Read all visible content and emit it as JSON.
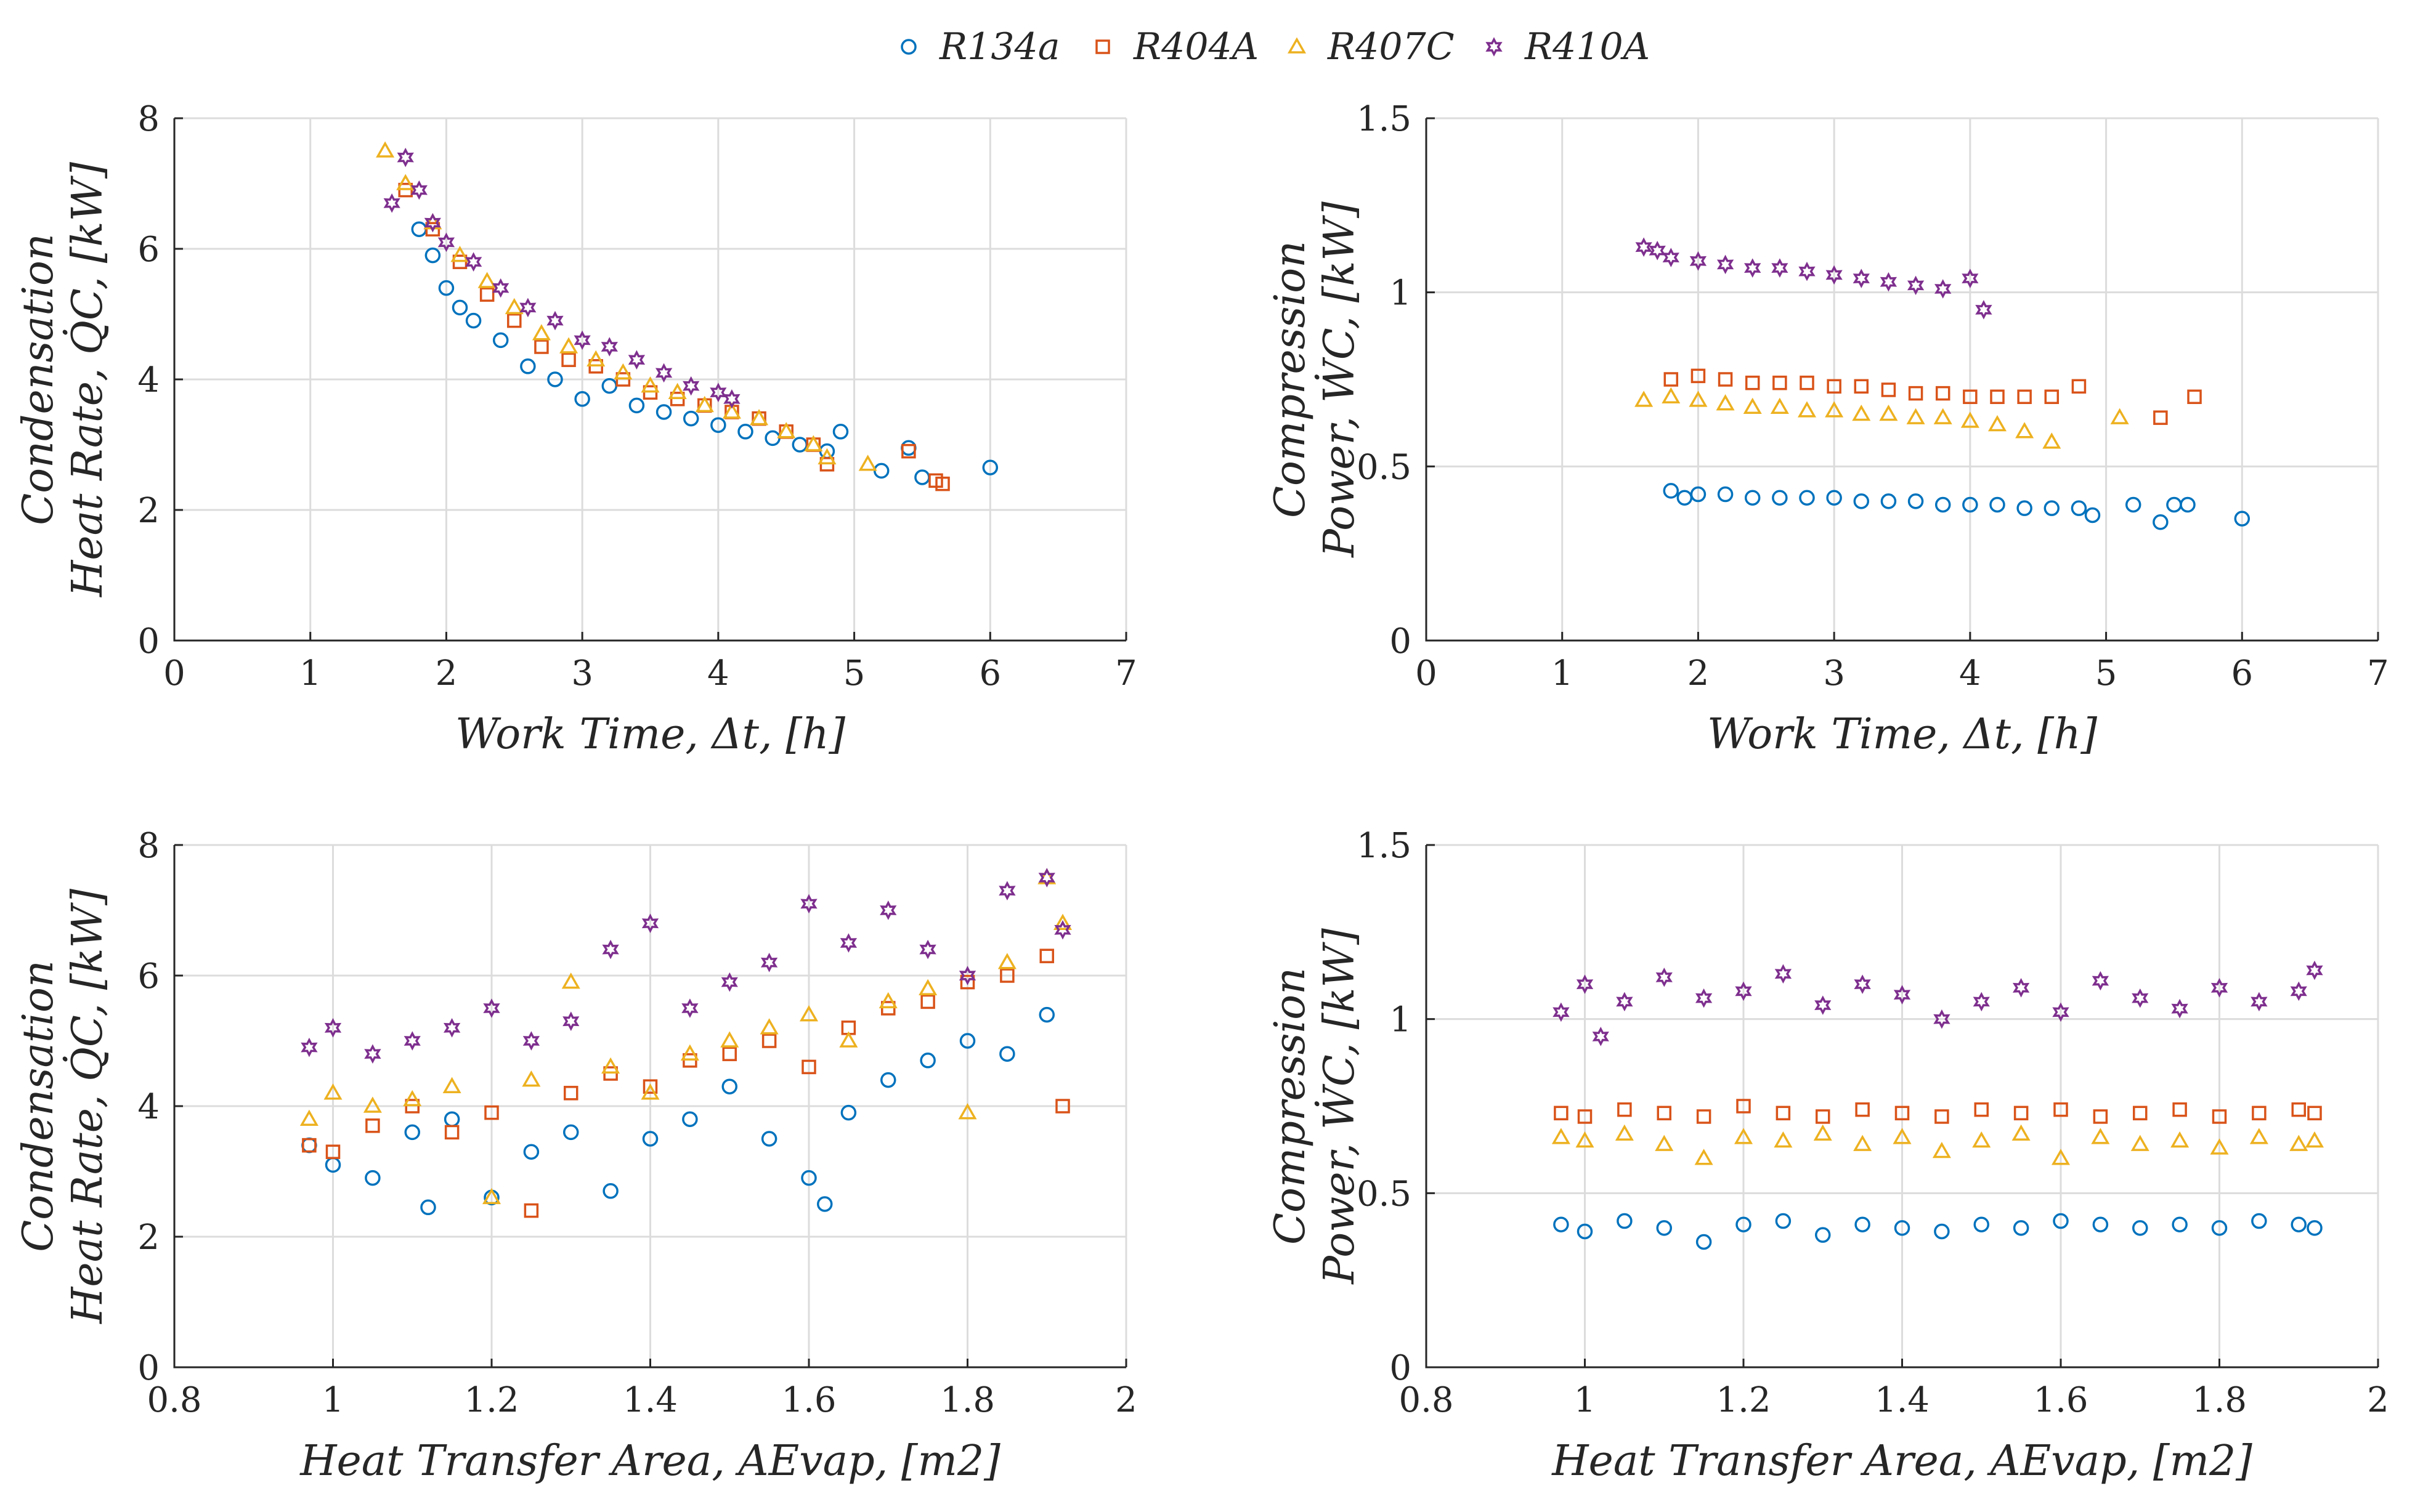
{
  "legend": {
    "entries": [
      {
        "name": "R134a",
        "marker": "circle",
        "color": "#0072BD"
      },
      {
        "name": "R404A",
        "marker": "square",
        "color": "#D95319"
      },
      {
        "name": "R407C",
        "marker": "triangle",
        "color": "#EDB120"
      },
      {
        "name": "R410A",
        "marker": "hexagram",
        "color": "#7E2F8E"
      }
    ]
  },
  "chart_data": [
    {
      "type": "scatter",
      "id": "qc_vs_time",
      "title": "",
      "xlabel": "Work Time, Δt, [h]",
      "ylabel_line1": "Condensation",
      "ylabel_line2": "Heat Rate, Q̇C, [kW]",
      "xlim": [
        0,
        7
      ],
      "ylim": [
        0,
        8
      ],
      "xticks": [
        "0",
        "1",
        "2",
        "3",
        "4",
        "5",
        "6",
        "7"
      ],
      "yticks": [
        "0",
        "2",
        "4",
        "6",
        "8"
      ],
      "grid": true,
      "series": [
        {
          "name": "R134a",
          "x": [
            1.8,
            1.9,
            2.0,
            2.1,
            2.2,
            2.4,
            2.6,
            2.8,
            3.0,
            3.2,
            3.4,
            3.6,
            3.8,
            4.0,
            4.2,
            4.4,
            4.6,
            4.8,
            4.9,
            5.2,
            5.4,
            5.5,
            6.0
          ],
          "y": [
            6.3,
            5.9,
            5.4,
            5.1,
            4.9,
            4.6,
            4.2,
            4.0,
            3.7,
            3.9,
            3.6,
            3.5,
            3.4,
            3.3,
            3.2,
            3.1,
            3.0,
            2.9,
            3.2,
            2.6,
            2.95,
            2.5,
            2.65
          ]
        },
        {
          "name": "R404A",
          "x": [
            1.7,
            1.9,
            2.1,
            2.3,
            2.5,
            2.7,
            2.9,
            3.1,
            3.3,
            3.5,
            3.7,
            3.9,
            4.1,
            4.3,
            4.5,
            4.7,
            4.8,
            5.4,
            5.6,
            5.65
          ],
          "y": [
            6.9,
            6.3,
            5.8,
            5.3,
            4.9,
            4.5,
            4.3,
            4.2,
            4.0,
            3.8,
            3.7,
            3.6,
            3.5,
            3.4,
            3.2,
            3.0,
            2.7,
            2.9,
            2.45,
            2.4
          ]
        },
        {
          "name": "R407C",
          "x": [
            1.55,
            1.7,
            1.9,
            2.1,
            2.3,
            2.5,
            2.7,
            2.9,
            3.1,
            3.3,
            3.5,
            3.7,
            3.9,
            4.1,
            4.3,
            4.5,
            4.7,
            4.8,
            5.1
          ],
          "y": [
            7.5,
            7.0,
            6.4,
            5.9,
            5.5,
            5.1,
            4.7,
            4.5,
            4.3,
            4.1,
            3.9,
            3.8,
            3.6,
            3.5,
            3.4,
            3.2,
            3.0,
            2.8,
            2.7
          ]
        },
        {
          "name": "R410A",
          "x": [
            1.6,
            1.7,
            1.8,
            1.9,
            2.0,
            2.2,
            2.4,
            2.6,
            2.8,
            3.0,
            3.2,
            3.4,
            3.6,
            3.8,
            4.0,
            4.1
          ],
          "y": [
            6.7,
            7.4,
            6.9,
            6.4,
            6.1,
            5.8,
            5.4,
            5.1,
            4.9,
            4.6,
            4.5,
            4.3,
            4.1,
            3.9,
            3.8,
            3.7
          ]
        }
      ]
    },
    {
      "type": "scatter",
      "id": "wc_vs_time",
      "title": "",
      "xlabel": "Work Time, Δt, [h]",
      "ylabel_line1": "Compression",
      "ylabel_line2": "Power, ẆC, [kW]",
      "xlim": [
        0,
        7
      ],
      "ylim": [
        0,
        1.5
      ],
      "xticks": [
        "0",
        "1",
        "2",
        "3",
        "4",
        "5",
        "6",
        "7"
      ],
      "yticks": [
        "0",
        "0.5",
        "1",
        "1.5"
      ],
      "grid": true,
      "series": [
        {
          "name": "R134a",
          "x": [
            1.8,
            1.9,
            2.0,
            2.2,
            2.4,
            2.6,
            2.8,
            3.0,
            3.2,
            3.4,
            3.6,
            3.8,
            4.0,
            4.2,
            4.4,
            4.6,
            4.8,
            4.9,
            5.2,
            5.4,
            5.5,
            5.6,
            6.0
          ],
          "y": [
            0.43,
            0.41,
            0.42,
            0.42,
            0.41,
            0.41,
            0.41,
            0.41,
            0.4,
            0.4,
            0.4,
            0.39,
            0.39,
            0.39,
            0.38,
            0.38,
            0.38,
            0.36,
            0.39,
            0.34,
            0.39,
            0.39,
            0.35
          ]
        },
        {
          "name": "R404A",
          "x": [
            1.8,
            2.0,
            2.2,
            2.4,
            2.6,
            2.8,
            3.0,
            3.2,
            3.4,
            3.6,
            3.8,
            4.0,
            4.2,
            4.4,
            4.6,
            4.8,
            5.4,
            5.65
          ],
          "y": [
            0.75,
            0.76,
            0.75,
            0.74,
            0.74,
            0.74,
            0.73,
            0.73,
            0.72,
            0.71,
            0.71,
            0.7,
            0.7,
            0.7,
            0.7,
            0.73,
            0.64,
            0.7
          ]
        },
        {
          "name": "R407C",
          "x": [
            1.6,
            1.8,
            2.0,
            2.2,
            2.4,
            2.6,
            2.8,
            3.0,
            3.2,
            3.4,
            3.6,
            3.8,
            4.0,
            4.2,
            4.4,
            4.6,
            5.1
          ],
          "y": [
            0.69,
            0.7,
            0.69,
            0.68,
            0.67,
            0.67,
            0.66,
            0.66,
            0.65,
            0.65,
            0.64,
            0.64,
            0.63,
            0.62,
            0.6,
            0.57,
            0.64
          ]
        },
        {
          "name": "R410A",
          "x": [
            1.6,
            1.7,
            1.8,
            2.0,
            2.2,
            2.4,
            2.6,
            2.8,
            3.0,
            3.2,
            3.4,
            3.6,
            3.8,
            4.0,
            4.1
          ],
          "y": [
            1.13,
            1.12,
            1.1,
            1.09,
            1.08,
            1.07,
            1.07,
            1.06,
            1.05,
            1.04,
            1.03,
            1.02,
            1.01,
            1.04,
            0.95
          ]
        }
      ]
    },
    {
      "type": "scatter",
      "id": "qc_vs_area",
      "title": "",
      "xlabel": "Heat Transfer Area, AEvap, [m2]",
      "ylabel_line1": "Condensation",
      "ylabel_line2": "Heat Rate, Q̇C, [kW]",
      "xlim": [
        0.8,
        2
      ],
      "ylim": [
        0,
        8
      ],
      "xticks": [
        "0.8",
        "1",
        "1.2",
        "1.4",
        "1.6",
        "1.8",
        "2"
      ],
      "yticks": [
        "0",
        "2",
        "4",
        "6",
        "8"
      ],
      "grid": true,
      "series": [
        {
          "name": "R134a",
          "x": [
            0.97,
            1.0,
            1.05,
            1.1,
            1.12,
            1.15,
            1.2,
            1.25,
            1.3,
            1.35,
            1.4,
            1.45,
            1.5,
            1.55,
            1.6,
            1.62,
            1.65,
            1.7,
            1.75,
            1.8,
            1.85,
            1.9
          ],
          "y": [
            3.4,
            3.1,
            2.9,
            3.6,
            2.45,
            3.8,
            2.6,
            3.3,
            3.6,
            2.7,
            3.5,
            3.8,
            4.3,
            3.5,
            2.9,
            2.5,
            3.9,
            4.4,
            4.7,
            5.0,
            4.8,
            5.4
          ]
        },
        {
          "name": "R404A",
          "x": [
            0.97,
            1.0,
            1.05,
            1.1,
            1.15,
            1.2,
            1.25,
            1.3,
            1.35,
            1.4,
            1.45,
            1.5,
            1.55,
            1.6,
            1.65,
            1.7,
            1.75,
            1.8,
            1.85,
            1.9,
            1.92
          ],
          "y": [
            3.4,
            3.3,
            3.7,
            4.0,
            3.6,
            3.9,
            2.4,
            4.2,
            4.5,
            4.3,
            4.7,
            4.8,
            5.0,
            4.6,
            5.2,
            5.5,
            5.6,
            5.9,
            6.0,
            6.3,
            4.0
          ]
        },
        {
          "name": "R407C",
          "x": [
            0.97,
            1.0,
            1.05,
            1.1,
            1.15,
            1.2,
            1.25,
            1.3,
            1.35,
            1.4,
            1.45,
            1.5,
            1.55,
            1.6,
            1.65,
            1.7,
            1.75,
            1.8,
            1.85,
            1.9,
            1.92
          ],
          "y": [
            3.8,
            4.2,
            4.0,
            4.1,
            4.3,
            2.6,
            4.4,
            5.9,
            4.6,
            4.2,
            4.8,
            5.0,
            5.2,
            5.4,
            5.0,
            5.6,
            5.8,
            3.9,
            6.2,
            7.5,
            6.8
          ]
        },
        {
          "name": "R410A",
          "x": [
            0.97,
            1.0,
            1.05,
            1.1,
            1.15,
            1.2,
            1.25,
            1.3,
            1.35,
            1.4,
            1.45,
            1.5,
            1.55,
            1.6,
            1.65,
            1.7,
            1.75,
            1.8,
            1.85,
            1.9,
            1.92
          ],
          "y": [
            4.9,
            5.2,
            4.8,
            5.0,
            5.2,
            5.5,
            5.0,
            5.3,
            6.4,
            6.8,
            5.5,
            5.9,
            6.2,
            7.1,
            6.5,
            7.0,
            6.4,
            6.0,
            7.3,
            7.5,
            6.7
          ]
        }
      ]
    },
    {
      "type": "scatter",
      "id": "wc_vs_area",
      "title": "",
      "xlabel": "Heat Transfer Area, AEvap, [m2]",
      "ylabel_line1": "Compression",
      "ylabel_line2": "Power, ẆC, [kW]",
      "xlim": [
        0.8,
        2
      ],
      "ylim": [
        0,
        1.5
      ],
      "xticks": [
        "0.8",
        "1",
        "1.2",
        "1.4",
        "1.6",
        "1.8",
        "2"
      ],
      "yticks": [
        "0",
        "0.5",
        "1",
        "1.5"
      ],
      "grid": true,
      "series": [
        {
          "name": "R134a",
          "x": [
            0.97,
            1.0,
            1.05,
            1.1,
            1.15,
            1.2,
            1.25,
            1.3,
            1.35,
            1.4,
            1.45,
            1.5,
            1.55,
            1.6,
            1.65,
            1.7,
            1.75,
            1.8,
            1.85,
            1.9,
            1.92
          ],
          "y": [
            0.41,
            0.39,
            0.42,
            0.4,
            0.36,
            0.41,
            0.42,
            0.38,
            0.41,
            0.4,
            0.39,
            0.41,
            0.4,
            0.42,
            0.41,
            0.4,
            0.41,
            0.4,
            0.42,
            0.41,
            0.4
          ]
        },
        {
          "name": "R404A",
          "x": [
            0.97,
            1.0,
            1.05,
            1.1,
            1.15,
            1.2,
            1.25,
            1.3,
            1.35,
            1.4,
            1.45,
            1.5,
            1.55,
            1.6,
            1.65,
            1.7,
            1.75,
            1.8,
            1.85,
            1.9,
            1.92
          ],
          "y": [
            0.73,
            0.72,
            0.74,
            0.73,
            0.72,
            0.75,
            0.73,
            0.72,
            0.74,
            0.73,
            0.72,
            0.74,
            0.73,
            0.74,
            0.72,
            0.73,
            0.74,
            0.72,
            0.73,
            0.74,
            0.73
          ]
        },
        {
          "name": "R407C",
          "x": [
            0.97,
            1.0,
            1.05,
            1.1,
            1.15,
            1.2,
            1.25,
            1.3,
            1.35,
            1.4,
            1.45,
            1.5,
            1.55,
            1.6,
            1.65,
            1.7,
            1.75,
            1.8,
            1.85,
            1.9,
            1.92
          ],
          "y": [
            0.66,
            0.65,
            0.67,
            0.64,
            0.6,
            0.66,
            0.65,
            0.67,
            0.64,
            0.66,
            0.62,
            0.65,
            0.67,
            0.6,
            0.66,
            0.64,
            0.65,
            0.63,
            0.66,
            0.64,
            0.65
          ]
        },
        {
          "name": "R410A",
          "x": [
            0.97,
            1.0,
            1.02,
            1.05,
            1.1,
            1.15,
            1.2,
            1.25,
            1.3,
            1.35,
            1.4,
            1.45,
            1.5,
            1.55,
            1.6,
            1.65,
            1.7,
            1.75,
            1.8,
            1.85,
            1.9,
            1.92
          ],
          "y": [
            1.02,
            1.1,
            0.95,
            1.05,
            1.12,
            1.06,
            1.08,
            1.13,
            1.04,
            1.1,
            1.07,
            1.0,
            1.05,
            1.09,
            1.02,
            1.11,
            1.06,
            1.03,
            1.09,
            1.05,
            1.08,
            1.14
          ]
        }
      ]
    }
  ]
}
